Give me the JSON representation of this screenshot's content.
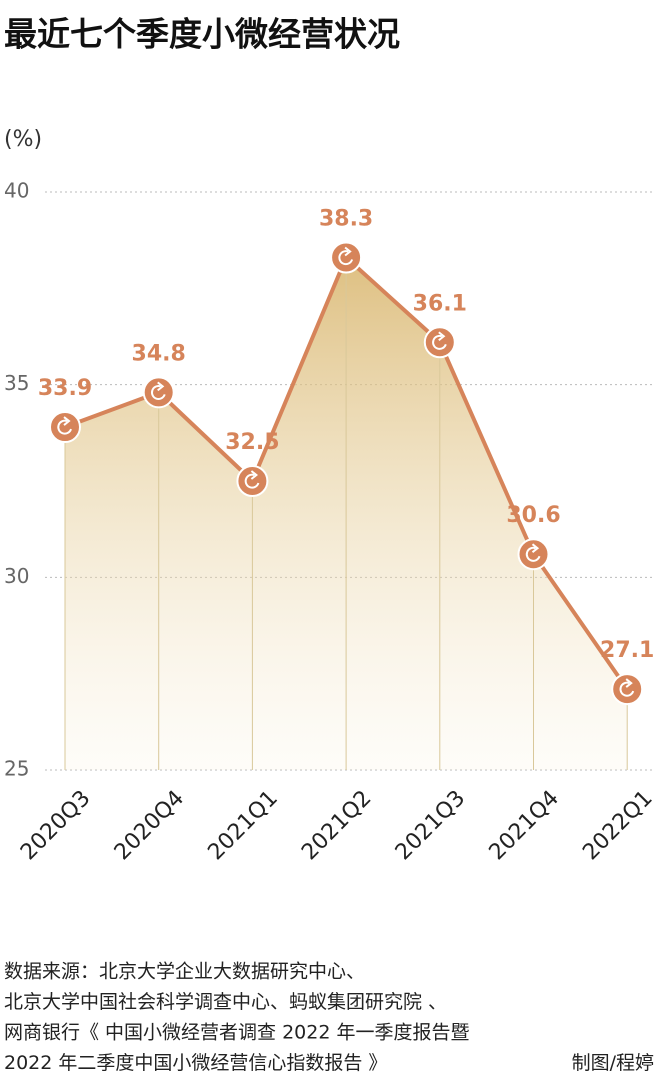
{
  "chart_data": {
    "type": "line",
    "title": "最近七个季度小微经营状况",
    "y_unit": "(%)",
    "categories": [
      "2020Q3",
      "2020Q4",
      "2021Q1",
      "2021Q2",
      "2021Q3",
      "2021Q4",
      "2022Q1"
    ],
    "values": [
      33.9,
      34.8,
      32.5,
      38.3,
      36.1,
      30.6,
      27.1
    ],
    "color": "#d6845a",
    "area_color": "#d8b46a",
    "ylim": [
      25,
      40
    ],
    "yticks": [
      25,
      30,
      35,
      40
    ],
    "grid": true,
    "source": [
      "数据来源：北京大学企业大数据研究中心、",
      "北京大学中国社会科学调查中心、蚂蚁集团研究院 、",
      "网商银行《 中国小微经营者调查 2022 年一季度报告暨",
      "2022 年二季度中国小微经营信心指数报告 》"
    ],
    "credit": "制图/程婷"
  }
}
